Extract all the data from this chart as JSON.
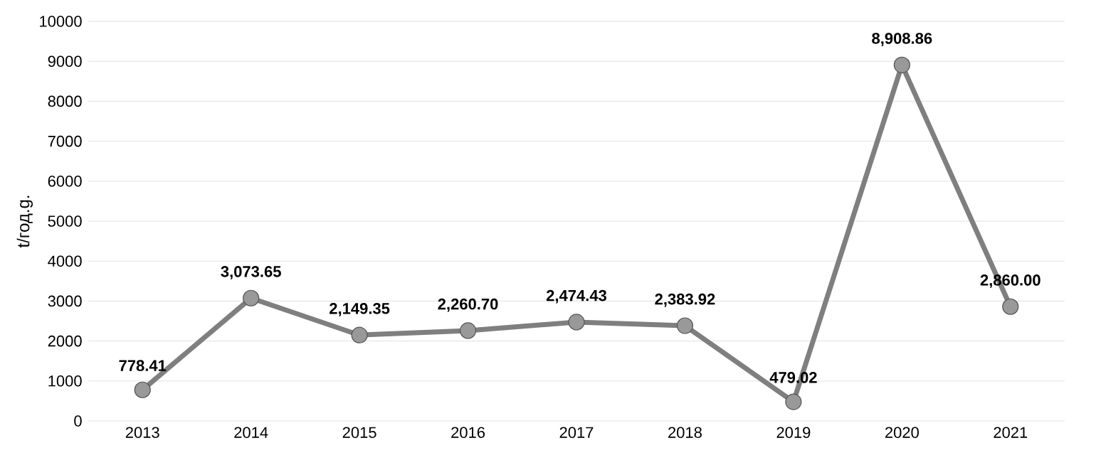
{
  "chart_data": {
    "type": "line",
    "ylabel": "t/год.g.",
    "categories": [
      "2013",
      "2014",
      "2015",
      "2016",
      "2017",
      "2018",
      "2019",
      "2020",
      "2021"
    ],
    "values": [
      778.41,
      3073.65,
      2149.35,
      2260.7,
      2474.43,
      2383.92,
      479.02,
      8908.86,
      2860.0
    ],
    "value_labels": [
      "778.41",
      "3,073.65",
      "2,149.35",
      "2,260.70",
      "2,474.43",
      "2,383.92",
      "479.02",
      "8,908.86",
      "2,860.00"
    ],
    "color": "#7f7f7f",
    "marker": "circle",
    "line_style": "solid",
    "grid": "y",
    "ylim": [
      0,
      10000
    ],
    "yticks": [
      0,
      1000,
      2000,
      3000,
      4000,
      5000,
      6000,
      7000,
      8000,
      9000,
      10000
    ]
  }
}
